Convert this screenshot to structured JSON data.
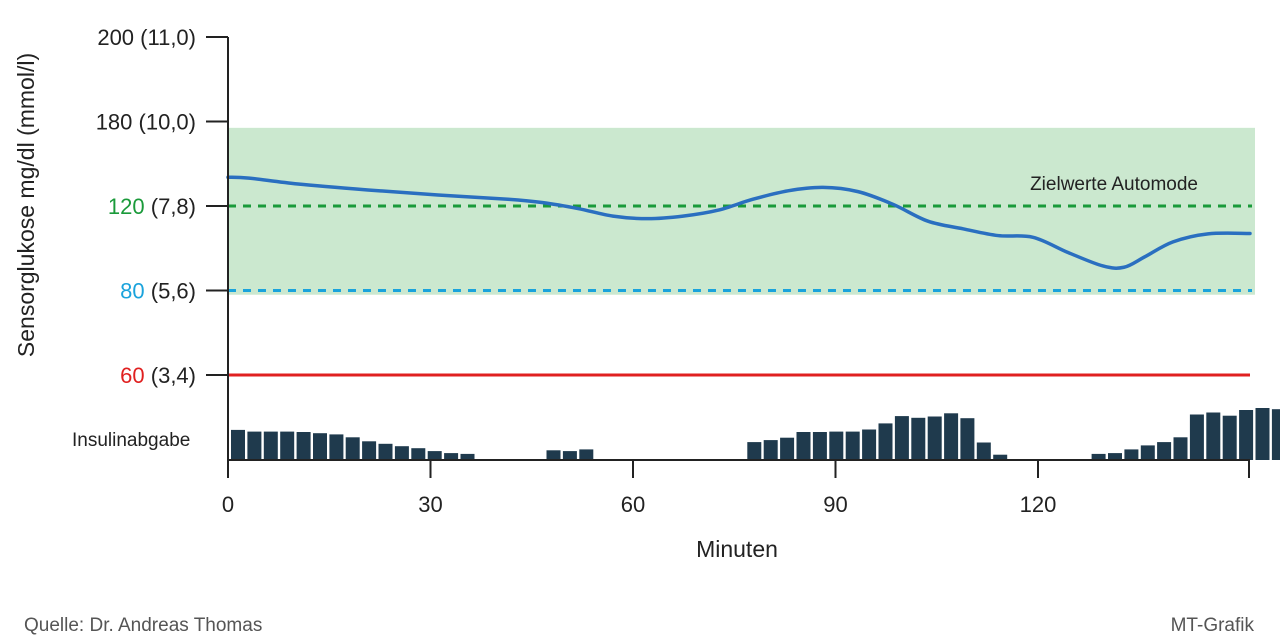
{
  "chart_data": {
    "type": "line",
    "ylabel": "Sensorglukose mg/dl (mmol/l)",
    "xlabel": "Minuten",
    "xlim": [
      0,
      146
    ],
    "x_ticks": [
      {
        "value": 0,
        "label": "0"
      },
      {
        "value": 30,
        "label": "30"
      },
      {
        "value": 60,
        "label": "60"
      },
      {
        "value": 90,
        "label": "90"
      },
      {
        "value": 120,
        "label": "120"
      }
    ],
    "y_ticks": [
      {
        "value": 200,
        "main": "200",
        "sub": " (11,0)",
        "color": "#222222"
      },
      {
        "value": 180,
        "main": "180",
        "sub": " (10,0)",
        "color": "#222222"
      },
      {
        "value": 160,
        "main": "120",
        "sub": " (7,8)",
        "color": "#1a9a3a"
      },
      {
        "value": 140,
        "main": "80",
        "sub": " (5,6)",
        "color": "#1aa3dc"
      },
      {
        "value": 120,
        "main": "60",
        "sub": " (3,4)",
        "color": "#e02020"
      }
    ],
    "target_range_band": {
      "from": 139,
      "to": 178.5,
      "color": "#cbe8cf"
    },
    "target_lines": [
      {
        "value": 160,
        "color": "#1a9a3a",
        "style": "dashed"
      },
      {
        "value": 140,
        "color": "#1aa3dc",
        "style": "dashed"
      }
    ],
    "hypo_line": {
      "value": 120,
      "color": "#e02020"
    },
    "annotation": "Zielwerte Automode",
    "glucose_series": {
      "color": "#2a6fc0",
      "x": [
        0,
        3,
        10,
        20,
        30,
        40,
        45,
        50,
        55,
        60,
        65,
        70,
        75,
        80,
        85,
        90,
        95,
        100,
        105,
        110,
        115,
        120,
        125,
        128,
        131,
        135,
        140,
        146
      ],
      "y": [
        166.8,
        166.6,
        165.2,
        163.8,
        162.6,
        161.6,
        160.8,
        159.4,
        157.6,
        157.0,
        157.6,
        159.0,
        161.6,
        163.6,
        164.4,
        163.4,
        160.4,
        156.4,
        154.6,
        153.0,
        152.6,
        149.0,
        145.8,
        145.5,
        148.0,
        151.5,
        153.4,
        153.5
      ]
    },
    "insulin_series": {
      "name": "Insulinabgabe",
      "color": "#1f3a4d",
      "bar_width_min": 2.1,
      "x": [
        0,
        2.4,
        4.8,
        7.2,
        9.6,
        12,
        14.4,
        16.8,
        19.2,
        21.6,
        24,
        26.4,
        28.8,
        31.2,
        33.6,
        46.2,
        48.6,
        51,
        75.6,
        78,
        80.4,
        82.8,
        85.2,
        87.6,
        90,
        92.4,
        94.8,
        97.2,
        99.6,
        102,
        104.4,
        106.8,
        109.2,
        111.6,
        126,
        128.4,
        130.8,
        133.2,
        135.6,
        138,
        140.4,
        142.8,
        145.2,
        147.6,
        150,
        152.4
      ],
      "y": [
        7.4,
        7.0,
        7.0,
        7.0,
        6.9,
        6.6,
        6.3,
        5.6,
        4.6,
        4.0,
        3.4,
        2.9,
        2.2,
        1.7,
        1.5,
        2.4,
        2.2,
        2.6,
        4.4,
        4.9,
        5.5,
        6.9,
        6.9,
        7.0,
        7.0,
        7.5,
        9.0,
        10.8,
        10.4,
        10.7,
        11.5,
        10.3,
        4.3,
        1.3,
        1.5,
        1.7,
        2.6,
        3.6,
        4.4,
        5.6,
        11.2,
        11.7,
        10.9,
        12.3,
        12.8,
        12.5
      ],
      "ylim": [
        0,
        14
      ]
    }
  },
  "footer": {
    "source": "Quelle: Dr. Andreas Thomas",
    "credit": "MT-Grafik"
  }
}
